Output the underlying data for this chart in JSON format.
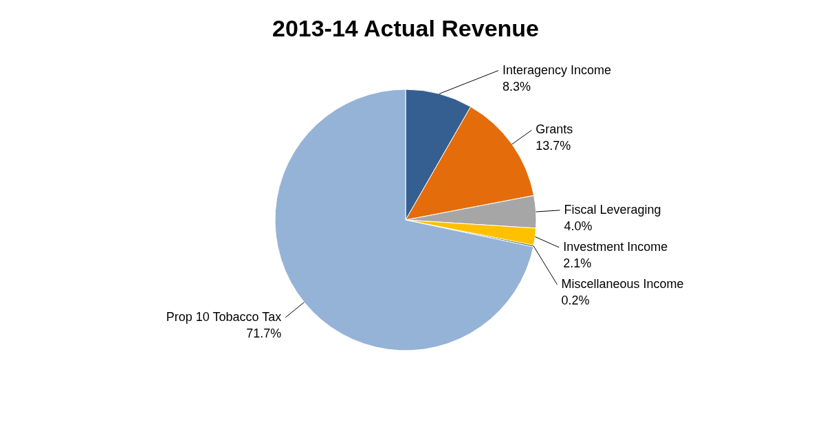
{
  "chart_data": {
    "type": "pie",
    "title": "2013-14 Actual Revenue",
    "categories": [
      "Interagency Income",
      "Grants",
      "Fiscal Leveraging",
      "Investment Income",
      "Miscellaneous Income",
      "Prop 10 Tobacco Tax"
    ],
    "values": [
      8.3,
      13.7,
      4.0,
      2.1,
      0.2,
      71.7
    ],
    "value_labels": [
      "8.3%",
      "13.7%",
      "4.0%",
      "2.1%",
      "0.2%",
      "71.7%"
    ],
    "colors": [
      "#355f91",
      "#e46c0a",
      "#a6a6a6",
      "#ffc000",
      "#4f6228",
      "#95b3d7"
    ]
  }
}
